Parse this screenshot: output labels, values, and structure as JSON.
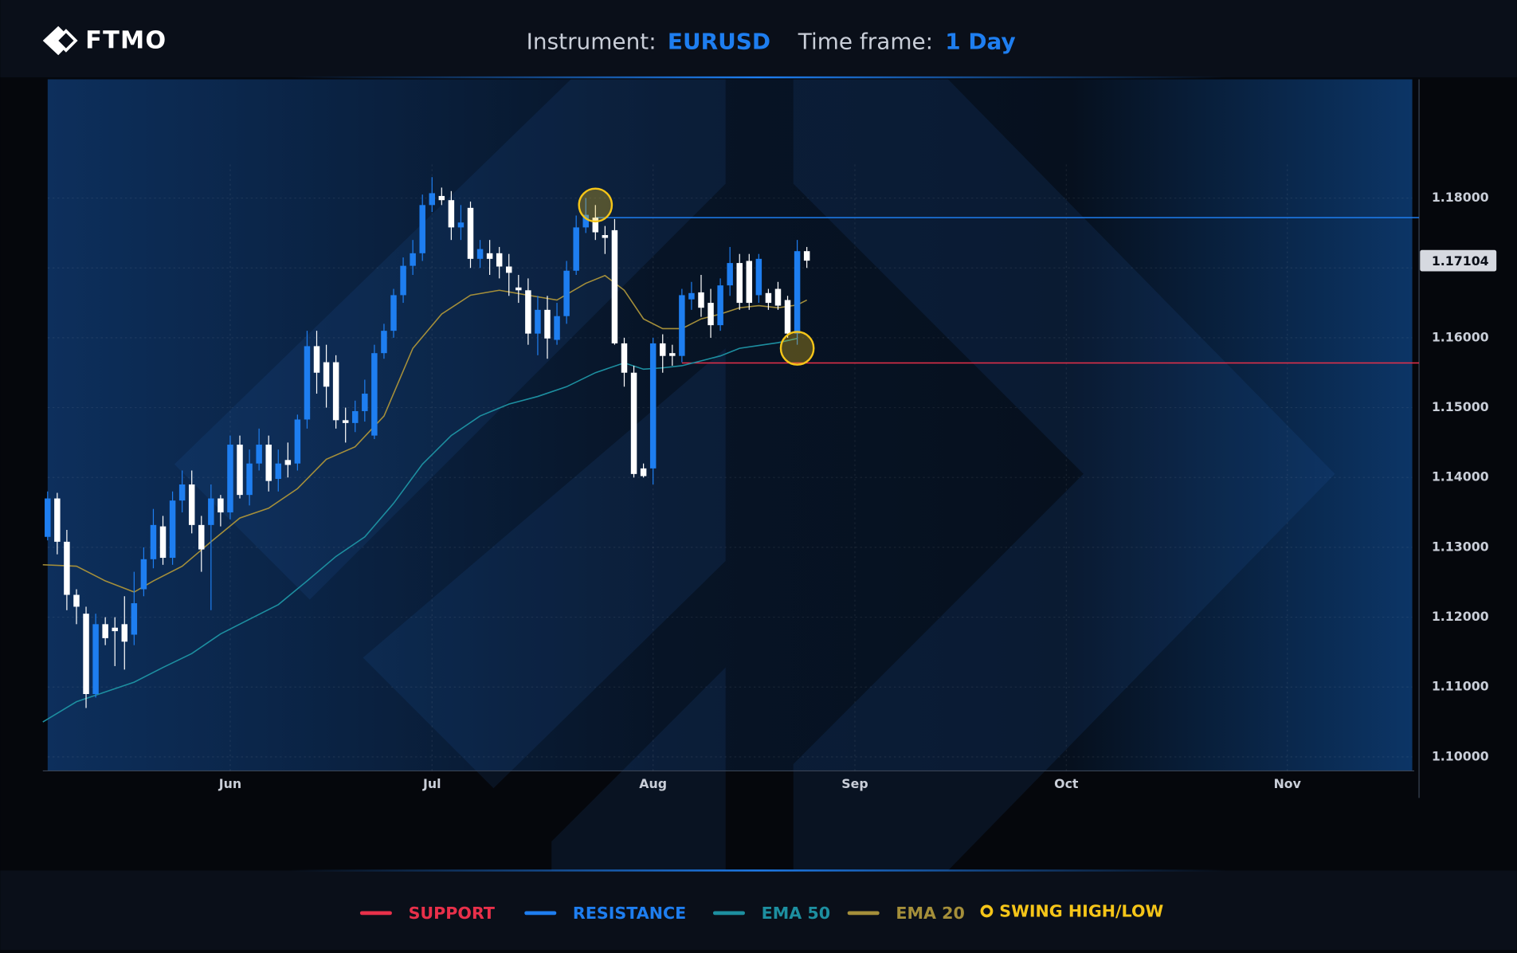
{
  "header": {
    "logo": "FTMO",
    "instrument_label": "Instrument:",
    "instrument": "EURUSD",
    "timeframe_label": "Time frame:",
    "timeframe": "1 Day"
  },
  "chart_data": {
    "type": "candlestick",
    "up_color": "#1e7ef0",
    "down_color": "#ffffff",
    "open": [
      1.1315,
      1.137,
      1.1308,
      1.1232,
      1.1205,
      1.109,
      1.119,
      1.1185,
      1.119,
      1.1175,
      1.124,
      1.1283,
      1.133,
      1.1285,
      1.1367,
      1.139,
      1.1332,
      1.1332,
      1.137,
      1.135,
      1.1447,
      1.1375,
      1.142,
      1.1447,
      1.1398,
      1.1425,
      1.142,
      1.1483,
      1.1588,
      1.1565,
      1.1565,
      1.1482,
      1.1478,
      1.1495,
      1.146,
      1.1578,
      1.161,
      1.1661,
      1.1703,
      1.1721,
      1.179,
      1.1803,
      1.1797,
      1.1758,
      1.1786,
      1.1713,
      1.1721,
      1.1721,
      1.1702,
      1.1672,
      1.1668,
      1.1606,
      1.164,
      1.1597,
      1.1631,
      1.1696,
      1.1758,
      1.1772,
      1.1747,
      1.1754,
      1.1592,
      1.155,
      1.1413,
      1.1413,
      1.1592,
      1.1578,
      1.1574,
      1.1655,
      1.1665,
      1.165,
      1.1618,
      1.1675,
      1.1707,
      1.171,
      1.1661,
      1.1664,
      1.167,
      1.1654,
      1.1606,
      1.1724
    ],
    "high": [
      1.138,
      1.1378,
      1.1325,
      1.124,
      1.1215,
      1.1205,
      1.12,
      1.12,
      1.123,
      1.1265,
      1.13,
      1.1355,
      1.1345,
      1.138,
      1.141,
      1.141,
      1.1345,
      1.139,
      1.1375,
      1.146,
      1.146,
      1.144,
      1.147,
      1.146,
      1.144,
      1.145,
      1.149,
      1.161,
      1.161,
      1.159,
      1.1575,
      1.15,
      1.151,
      1.154,
      1.159,
      1.162,
      1.167,
      1.1715,
      1.174,
      1.1805,
      1.183,
      1.1815,
      1.181,
      1.179,
      1.1795,
      1.174,
      1.174,
      1.173,
      1.172,
      1.169,
      1.1685,
      1.166,
      1.166,
      1.165,
      1.171,
      1.1775,
      1.18,
      1.179,
      1.176,
      1.177,
      1.16,
      1.156,
      1.142,
      1.16,
      1.1605,
      1.159,
      1.167,
      1.168,
      1.169,
      1.167,
      1.1685,
      1.173,
      1.172,
      1.172,
      1.172,
      1.167,
      1.168,
      1.166,
      1.174,
      1.173
    ],
    "low": [
      1.131,
      1.129,
      1.121,
      1.119,
      1.107,
      1.1085,
      1.116,
      1.113,
      1.1125,
      1.116,
      1.123,
      1.127,
      1.1275,
      1.1275,
      1.135,
      1.132,
      1.1265,
      1.121,
      1.133,
      1.134,
      1.137,
      1.136,
      1.141,
      1.138,
      1.138,
      1.14,
      1.141,
      1.147,
      1.152,
      1.15,
      1.147,
      1.145,
      1.1465,
      1.148,
      1.1455,
      1.157,
      1.16,
      1.165,
      1.169,
      1.171,
      1.178,
      1.179,
      1.174,
      1.174,
      1.17,
      1.17,
      1.169,
      1.1685,
      1.166,
      1.165,
      1.159,
      1.1575,
      1.157,
      1.159,
      1.162,
      1.169,
      1.175,
      1.174,
      1.172,
      1.159,
      1.153,
      1.14,
      1.14,
      1.139,
      1.155,
      1.156,
      1.1565,
      1.164,
      1.163,
      1.16,
      1.161,
      1.166,
      1.164,
      1.164,
      1.165,
      1.164,
      1.164,
      1.16,
      1.159,
      1.17
    ],
    "close": [
      1.137,
      1.1308,
      1.1232,
      1.1215,
      1.109,
      1.119,
      1.117,
      1.118,
      1.1165,
      1.122,
      1.1283,
      1.1332,
      1.1285,
      1.1367,
      1.139,
      1.1332,
      1.1297,
      1.137,
      1.135,
      1.1447,
      1.1375,
      1.142,
      1.1447,
      1.1395,
      1.142,
      1.1418,
      1.1483,
      1.1588,
      1.155,
      1.153,
      1.1482,
      1.1478,
      1.1495,
      1.152,
      1.1578,
      1.161,
      1.1661,
      1.1703,
      1.1721,
      1.179,
      1.1807,
      1.1797,
      1.1758,
      1.1765,
      1.1713,
      1.1727,
      1.1713,
      1.1702,
      1.1693,
      1.1668,
      1.1606,
      1.164,
      1.1599,
      1.1631,
      1.1696,
      1.1758,
      1.1776,
      1.1751,
      1.1743,
      1.1592,
      1.155,
      1.1405,
      1.1402,
      1.1592,
      1.1574,
      1.1574,
      1.1661,
      1.1664,
      1.1643,
      1.1618,
      1.1675,
      1.1707,
      1.165,
      1.165,
      1.1713,
      1.165,
      1.1646,
      1.1606,
      1.1724,
      1.17104
    ],
    "xlim": [
      -0.5,
      142
    ],
    "xticks": [
      {
        "value": 19,
        "label": "Jun"
      },
      {
        "value": 40,
        "label": "Jul"
      },
      {
        "value": 63,
        "label": "Aug"
      },
      {
        "value": 84,
        "label": "Sep"
      },
      {
        "value": 106,
        "label": "Oct"
      },
      {
        "value": 129,
        "label": "Nov"
      }
    ],
    "ylim": [
      1.098,
      1.197
    ],
    "yticks": [
      {
        "value": 1.1,
        "label": "1.10000"
      },
      {
        "value": 1.11,
        "label": "1.11000"
      },
      {
        "value": 1.12,
        "label": "1.12000"
      },
      {
        "value": 1.13,
        "label": "1.13000"
      },
      {
        "value": 1.14,
        "label": "1.14000"
      },
      {
        "value": 1.15,
        "label": "1.15000"
      },
      {
        "value": 1.16,
        "label": "1.16000"
      },
      {
        "value": 1.17,
        "label": "1.17000"
      },
      {
        "value": 1.18,
        "label": "1.18000"
      }
    ],
    "grid": true,
    "levels": [
      {
        "name": "SUPPORT",
        "color": "#e8304a",
        "value": 1.1564,
        "start": 66
      },
      {
        "name": "RESISTANCE",
        "color": "#1e7ef0",
        "value": 1.1772,
        "start": 57
      }
    ],
    "ema": [
      {
        "name": "EMA 50",
        "color": "#1d8fa0",
        "x": [
          -0.5,
          3,
          6,
          9,
          12,
          15,
          18,
          21,
          24,
          27,
          30,
          33,
          36,
          39,
          42,
          45,
          48,
          51,
          54,
          57,
          60,
          62,
          64,
          66,
          68,
          70,
          72,
          74,
          76,
          78
        ],
        "values": [
          1.105,
          1.1079,
          1.1093,
          1.1107,
          1.1128,
          1.1148,
          1.1176,
          1.1197,
          1.1218,
          1.1252,
          1.1287,
          1.1315,
          1.1363,
          1.1419,
          1.146,
          1.1488,
          1.1505,
          1.1516,
          1.153,
          1.155,
          1.1564,
          1.1555,
          1.1557,
          1.156,
          1.1567,
          1.1574,
          1.1585,
          1.1589,
          1.1593,
          1.1599
        ]
      },
      {
        "name": "EMA 20",
        "color": "#a58f3a",
        "x": [
          -0.5,
          3,
          6,
          9,
          11,
          14,
          17,
          20,
          23,
          26,
          29,
          32,
          35,
          38,
          41,
          44,
          47,
          50,
          53,
          56,
          58,
          60,
          62,
          64,
          66,
          68,
          70,
          72,
          74,
          76,
          78,
          79
        ],
        "values": [
          1.1275,
          1.1273,
          1.1252,
          1.1236,
          1.1252,
          1.1273,
          1.1308,
          1.1342,
          1.1356,
          1.1384,
          1.1426,
          1.1444,
          1.1488,
          1.1585,
          1.1634,
          1.1661,
          1.1668,
          1.1661,
          1.1654,
          1.1678,
          1.1689,
          1.1668,
          1.1627,
          1.1613,
          1.1613,
          1.1627,
          1.1634,
          1.1643,
          1.1646,
          1.1643,
          1.1647,
          1.1654
        ]
      }
    ],
    "swings": {
      "name": "SWING HIGH/LOW",
      "color": "#f5c518",
      "x": [
        57,
        78
      ],
      "values": [
        1.179,
        1.1585
      ]
    }
  }
}
